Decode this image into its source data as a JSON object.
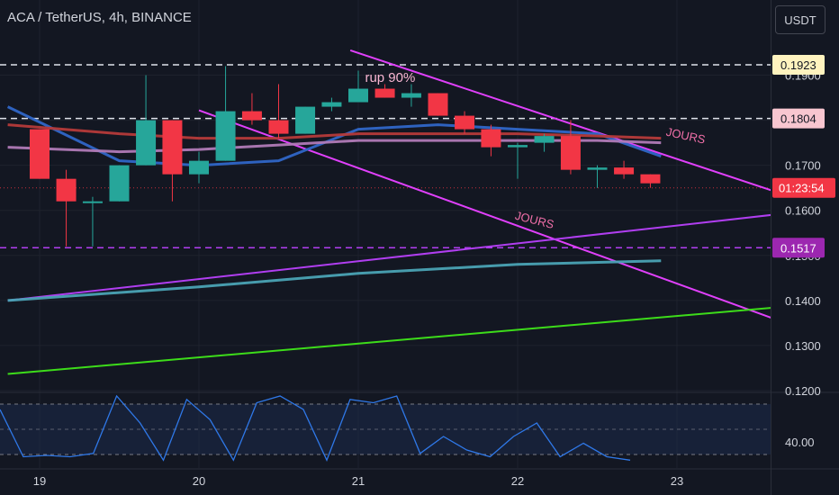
{
  "header": {
    "symbol_title": "ACA / TetherUS, 4h, BINANCE",
    "currency_button": "USDT"
  },
  "colors": {
    "background": "#131722",
    "up_candle": "#26a69a",
    "down_candle": "#f23645",
    "magenta_channel": "#e040fb",
    "purple_trend": "#b03ef0",
    "green_trend": "#3ddc1a",
    "blue_ma": "#2f66c8",
    "red_ma": "#b53a3a",
    "pink_ma": "#b07ab7",
    "teal_ma": "#4aa3b5",
    "stoch_line": "#2f78e8"
  },
  "chart_data": {
    "type": "candlestick",
    "symbol": "ACA / TetherUS",
    "timeframe": "4h",
    "exchange": "BINANCE",
    "x_ticks": [
      "19",
      "20",
      "21",
      "22",
      "23"
    ],
    "y_ticks": [
      "0.1900",
      "0.1700",
      "0.1600",
      "0.1500",
      "0.1400",
      "0.1300",
      "0.1200"
    ],
    "ylim": [
      0.1175,
      0.199
    ],
    "candles": [
      {
        "t": 0.0,
        "o": 0.178,
        "h": 0.178,
        "l": 0.167,
        "c": 0.167
      },
      {
        "t": 0.167,
        "o": 0.167,
        "h": 0.169,
        "l": 0.152,
        "c": 0.162
      },
      {
        "t": 0.333,
        "o": 0.162,
        "h": 0.163,
        "l": 0.152,
        "c": 0.162
      },
      {
        "t": 0.5,
        "o": 0.162,
        "h": 0.17,
        "l": 0.162,
        "c": 0.17
      },
      {
        "t": 0.667,
        "o": 0.17,
        "h": 0.19,
        "l": 0.17,
        "c": 0.18
      },
      {
        "t": 0.833,
        "o": 0.18,
        "h": 0.18,
        "l": 0.162,
        "c": 0.168
      },
      {
        "t": 1.0,
        "o": 0.168,
        "h": 0.173,
        "l": 0.166,
        "c": 0.171
      },
      {
        "t": 1.167,
        "o": 0.171,
        "h": 0.192,
        "l": 0.171,
        "c": 0.182
      },
      {
        "t": 1.333,
        "o": 0.182,
        "h": 0.186,
        "l": 0.179,
        "c": 0.18
      },
      {
        "t": 1.5,
        "o": 0.18,
        "h": 0.188,
        "l": 0.176,
        "c": 0.177
      },
      {
        "t": 1.667,
        "o": 0.177,
        "h": 0.183,
        "l": 0.177,
        "c": 0.183
      },
      {
        "t": 1.833,
        "o": 0.183,
        "h": 0.185,
        "l": 0.182,
        "c": 0.184
      },
      {
        "t": 2.0,
        "o": 0.184,
        "h": 0.191,
        "l": 0.184,
        "c": 0.187
      },
      {
        "t": 2.167,
        "o": 0.187,
        "h": 0.188,
        "l": 0.185,
        "c": 0.185
      },
      {
        "t": 2.333,
        "o": 0.185,
        "h": 0.188,
        "l": 0.183,
        "c": 0.186
      },
      {
        "t": 2.5,
        "o": 0.186,
        "h": 0.186,
        "l": 0.181,
        "c": 0.181
      },
      {
        "t": 2.667,
        "o": 0.181,
        "h": 0.182,
        "l": 0.177,
        "c": 0.178
      },
      {
        "t": 2.833,
        "o": 0.178,
        "h": 0.179,
        "l": 0.172,
        "c": 0.174
      },
      {
        "t": 3.0,
        "o": 0.174,
        "h": 0.175,
        "l": 0.167,
        "c": 0.1745
      },
      {
        "t": 3.167,
        "o": 0.175,
        "h": 0.177,
        "l": 0.173,
        "c": 0.1765
      },
      {
        "t": 3.333,
        "o": 0.1765,
        "h": 0.18,
        "l": 0.168,
        "c": 0.169
      },
      {
        "t": 3.5,
        "o": 0.169,
        "h": 0.17,
        "l": 0.165,
        "c": 0.1695
      },
      {
        "t": 3.667,
        "o": 0.1695,
        "h": 0.171,
        "l": 0.167,
        "c": 0.168
      },
      {
        "t": 3.833,
        "o": 0.168,
        "h": 0.168,
        "l": 0.165,
        "c": 0.166
      }
    ],
    "moving_averages": [
      {
        "color": "blue",
        "points": [
          [
            -0.2,
            0.183
          ],
          [
            0.5,
            0.171
          ],
          [
            1.0,
            0.17
          ],
          [
            1.5,
            0.171
          ],
          [
            2.0,
            0.178
          ],
          [
            2.5,
            0.179
          ],
          [
            3.0,
            0.178
          ],
          [
            3.5,
            0.177
          ],
          [
            3.9,
            0.172
          ]
        ]
      },
      {
        "color": "red",
        "points": [
          [
            -0.2,
            0.179
          ],
          [
            0.5,
            0.177
          ],
          [
            1.0,
            0.176
          ],
          [
            1.5,
            0.176
          ],
          [
            2.0,
            0.177
          ],
          [
            2.5,
            0.177
          ],
          [
            3.0,
            0.177
          ],
          [
            3.5,
            0.1765
          ],
          [
            3.9,
            0.176
          ]
        ]
      },
      {
        "color": "pink",
        "points": [
          [
            -0.2,
            0.174
          ],
          [
            0.5,
            0.173
          ],
          [
            1.0,
            0.1735
          ],
          [
            1.5,
            0.1745
          ],
          [
            2.0,
            0.1755
          ],
          [
            2.5,
            0.1755
          ],
          [
            3.0,
            0.1755
          ],
          [
            3.5,
            0.1755
          ],
          [
            3.9,
            0.175
          ]
        ]
      },
      {
        "color": "teal",
        "points": [
          [
            -0.2,
            0.14
          ],
          [
            1.0,
            0.143
          ],
          [
            2.0,
            0.146
          ],
          [
            3.0,
            0.148
          ],
          [
            3.9,
            0.1488
          ]
        ]
      }
    ],
    "trend_lines": [
      {
        "color": "magenta",
        "from": [
          1.95,
          0.1955
        ],
        "to": [
          4.8,
          0.162
        ]
      },
      {
        "color": "magenta",
        "from": [
          1.0,
          0.1822
        ],
        "to": [
          4.8,
          0.1335
        ]
      },
      {
        "color": "purple",
        "from": [
          -0.2,
          0.14
        ],
        "to": [
          4.8,
          0.1598
        ]
      },
      {
        "color": "green",
        "from": [
          -0.2,
          0.1237
        ],
        "to": [
          4.8,
          0.139
        ]
      }
    ],
    "horizontal_levels": [
      {
        "value": 0.1923,
        "label": "0.1923",
        "style": "white-dashed"
      },
      {
        "value": 0.1804,
        "label": "0.1804",
        "style": "white-dashed"
      },
      {
        "value": 0.1517,
        "label": "0.1517",
        "style": "purple-dashed"
      }
    ],
    "current_price": {
      "value": 0.165,
      "countdown": "01:23:54"
    },
    "annotations": [
      {
        "text": "rup 90%",
        "x": 2.2,
        "y": 0.1885
      },
      {
        "text": "JOURS",
        "x": 4.05,
        "y": 0.1757
      },
      {
        "text": "JOURS",
        "x": 3.1,
        "y": 0.157
      }
    ],
    "oscillator": {
      "label": "40.00",
      "values": [
        80,
        10,
        12,
        10,
        15,
        100,
        60,
        5,
        95,
        65,
        5,
        90,
        100,
        80,
        5,
        95,
        90,
        100,
        15,
        40,
        20,
        10,
        40,
        60,
        10,
        30,
        10,
        5
      ],
      "range": [
        0,
        100
      ]
    }
  }
}
